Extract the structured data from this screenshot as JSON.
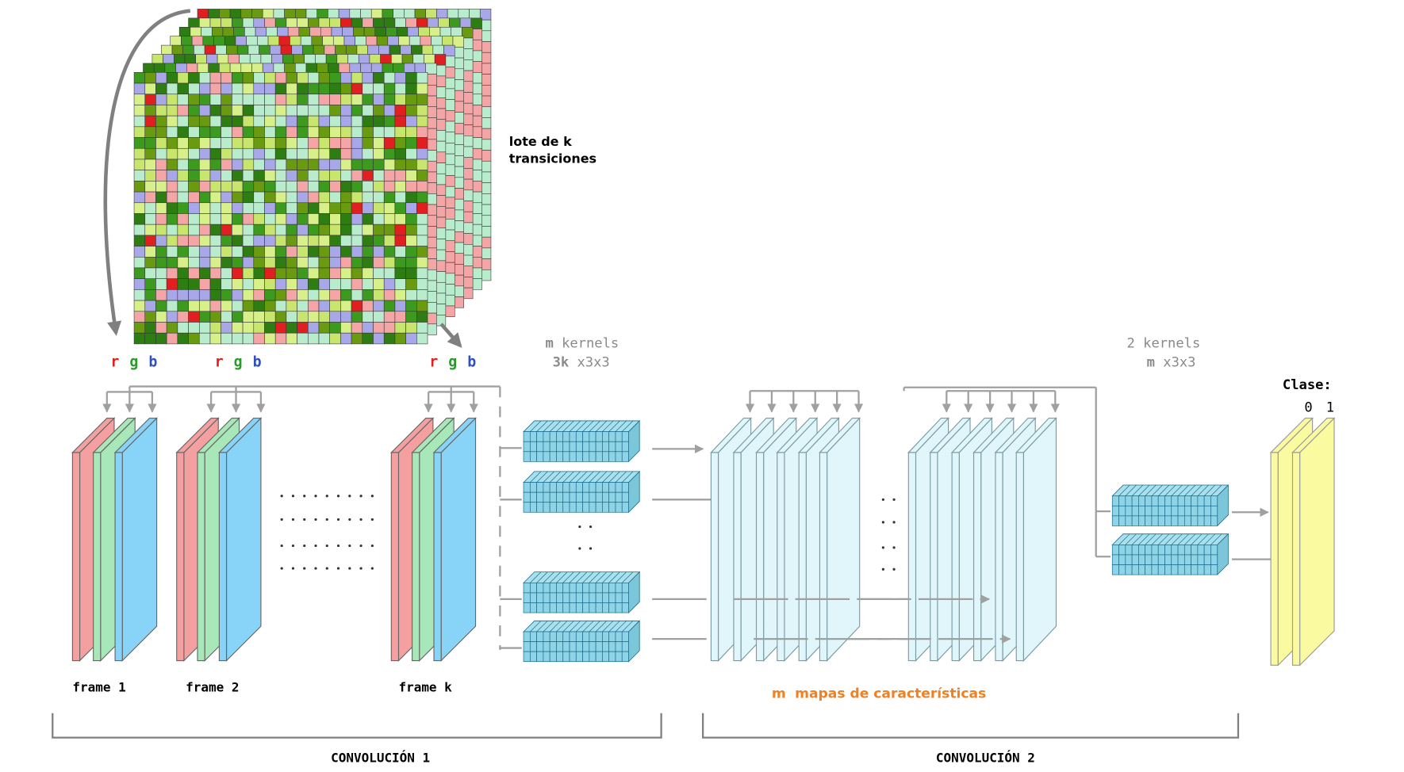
{
  "input": {
    "label_lines": [
      "lote de k",
      "transiciones"
    ],
    "channels": [
      "r",
      "g",
      "b"
    ]
  },
  "frames": [
    {
      "label": "frame 1"
    },
    {
      "label": "frame 2"
    },
    {
      "label": "frame k"
    }
  ],
  "kernels_1": {
    "count": "m",
    "label": "kernels",
    "size_prefix": "3k",
    "size": "x3x3"
  },
  "feature_maps": {
    "count": "m",
    "label": "mapas de características"
  },
  "kernels_2": {
    "count": "2",
    "label": "kernels",
    "size_prefix": "m",
    "size": "x3x3"
  },
  "output": {
    "title": "Clase:",
    "classes": [
      "0",
      "1"
    ]
  },
  "sections": [
    "CONVOLUCIÓN 1",
    "CONVOLUCIÓN 2"
  ]
}
